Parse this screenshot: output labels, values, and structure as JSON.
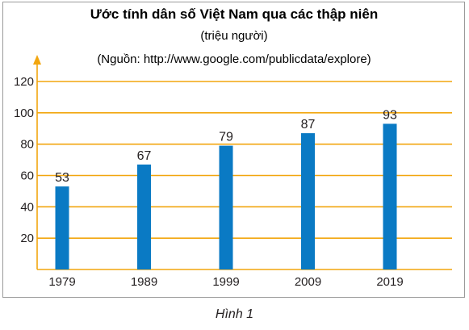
{
  "figure_caption": "Hình 1",
  "chart_data": {
    "type": "bar",
    "title": "Ước tính dân số Việt Nam qua các thập niên",
    "unit": "(triệu người)",
    "source": "(Nguồn: http://www.google.com/publicdata/explore)",
    "categories": [
      "1979",
      "1989",
      "1999",
      "2009",
      "2019"
    ],
    "values": [
      53,
      67,
      79,
      87,
      93
    ],
    "data_labels": [
      "53",
      "67",
      "79",
      "87",
      "93"
    ],
    "y_ticks": [
      20,
      40,
      60,
      80,
      100,
      120
    ],
    "ylim": [
      0,
      130
    ],
    "grid": true,
    "legend": "none",
    "colors": {
      "bar": "#0a7ac4",
      "grid": "#f2a60f",
      "axis": "#f2a60f",
      "text": "#231f20"
    }
  }
}
